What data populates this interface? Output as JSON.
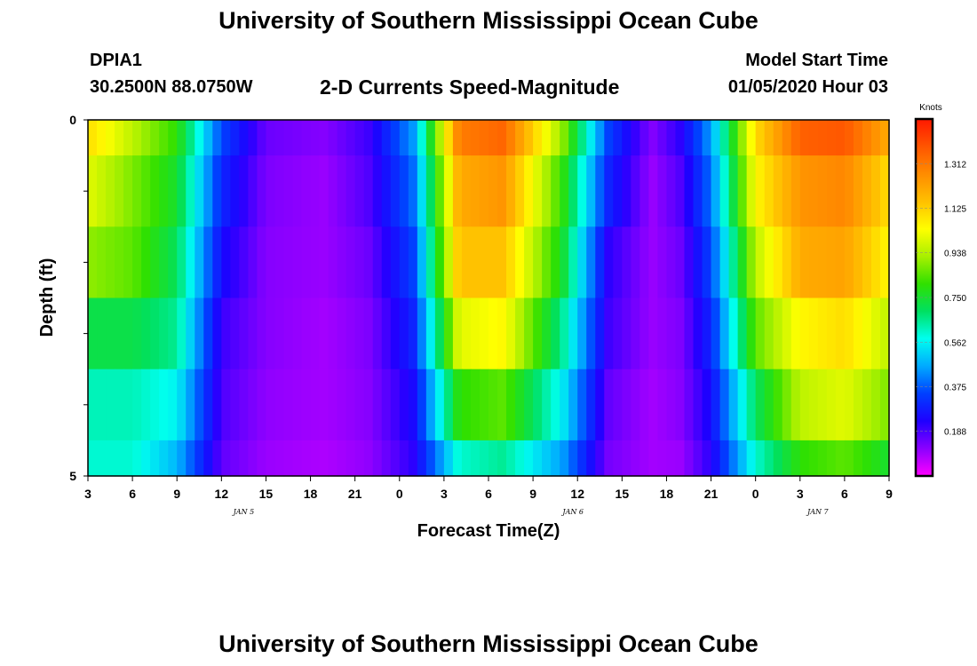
{
  "page": {
    "title": "University of Southern Mississippi Ocean Cube",
    "footer_title": "University of Southern Mississippi Ocean Cube",
    "station": "DPIA1",
    "location": "30.2500N 88.0750W",
    "subtitle": "2-D Currents Speed-Magnitude",
    "model_start_label": "Model Start Time",
    "model_start_value": "01/05/2020 Hour 03"
  },
  "chart_data": {
    "type": "heatmap",
    "title": "2-D Currents Speed-Magnitude",
    "xlabel": "Forecast Time(Z)",
    "ylabel": "Depth (ft)",
    "x_tick_labels": [
      "3",
      "6",
      "9",
      "12",
      "15",
      "18",
      "21",
      "0",
      "3",
      "6",
      "9",
      "12",
      "15",
      "18",
      "21",
      "0",
      "3",
      "6",
      "9"
    ],
    "date_labels": [
      {
        "text": "JAN 5",
        "at_tick": 3.5
      },
      {
        "text": "JAN 6",
        "at_tick": 10.9
      },
      {
        "text": "JAN 7",
        "at_tick": 16.4
      }
    ],
    "x_range_hours": [
      0,
      54
    ],
    "y_tick_labels": [
      "0",
      "5"
    ],
    "ylim": [
      0,
      5
    ],
    "colorbar": {
      "unit": "Knots",
      "tick_labels": [
        "0.188",
        "0.375",
        "0.562",
        "0.750",
        "0.938",
        "1.125",
        "1.312"
      ],
      "range": [
        0,
        1.5
      ],
      "colors": [
        "#ff00ff",
        "#8a00ff",
        "#1e00ff",
        "#0040ff",
        "#00aaff",
        "#00ffee",
        "#00e060",
        "#30e000",
        "#a8f000",
        "#ffff00",
        "#ffc000",
        "#ff8c00",
        "#ff5500",
        "#ff1800"
      ]
    },
    "depth_layers": [
      "0-0.5 ft",
      "0.5-1.5 ft",
      "1.5-2.5 ft",
      "2.5-3.5 ft",
      "3.5-4.5 ft",
      "4.5-5 ft"
    ],
    "key_times_hours": [
      0,
      3,
      6,
      9,
      12,
      16,
      19,
      22,
      25,
      28,
      32,
      35,
      38,
      40,
      42,
      45,
      48,
      51,
      54
    ],
    "rows": [
      [
        1.1,
        0.95,
        0.8,
        0.35,
        0.15,
        0.12,
        0.2,
        0.45,
        1.3,
        1.35,
        0.9,
        0.35,
        0.12,
        0.22,
        0.45,
        1.1,
        1.36,
        1.38,
        1.2
      ],
      [
        1.0,
        0.88,
        0.75,
        0.3,
        0.13,
        0.1,
        0.18,
        0.4,
        1.2,
        1.25,
        0.8,
        0.3,
        0.1,
        0.18,
        0.4,
        1.05,
        1.25,
        1.28,
        1.1
      ],
      [
        0.9,
        0.85,
        0.7,
        0.25,
        0.12,
        0.1,
        0.15,
        0.35,
        1.15,
        1.15,
        0.75,
        0.22,
        0.1,
        0.15,
        0.35,
        0.95,
        1.2,
        1.22,
        1.05
      ],
      [
        0.72,
        0.72,
        0.65,
        0.2,
        0.12,
        0.09,
        0.13,
        0.3,
        1.0,
        1.05,
        0.65,
        0.2,
        0.1,
        0.13,
        0.3,
        0.85,
        1.05,
        1.1,
        0.95
      ],
      [
        0.62,
        0.62,
        0.56,
        0.18,
        0.11,
        0.09,
        0.12,
        0.25,
        0.8,
        0.85,
        0.55,
        0.16,
        0.09,
        0.12,
        0.25,
        0.7,
        0.95,
        1.0,
        0.88
      ],
      [
        0.6,
        0.6,
        0.48,
        0.16,
        0.1,
        0.08,
        0.11,
        0.22,
        0.6,
        0.65,
        0.45,
        0.14,
        0.09,
        0.1,
        0.22,
        0.6,
        0.8,
        0.85,
        0.75
      ]
    ]
  }
}
